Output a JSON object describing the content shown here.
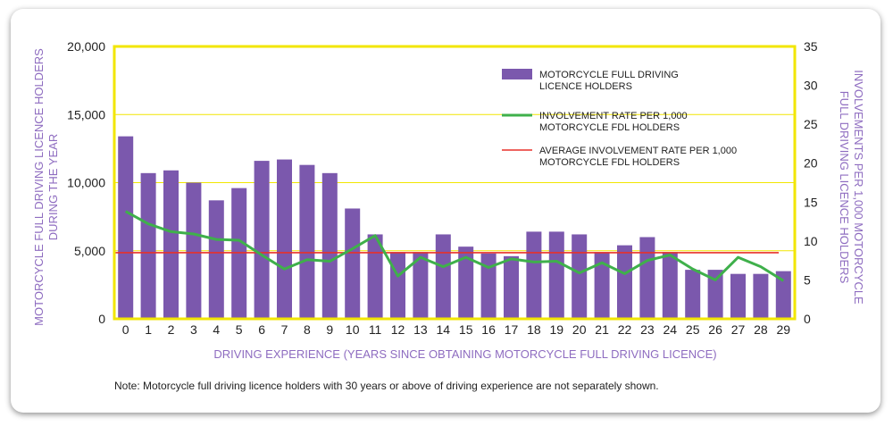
{
  "chart_data": {
    "type": "bar",
    "categories": [
      "0",
      "1",
      "2",
      "3",
      "4",
      "5",
      "6",
      "7",
      "8",
      "9",
      "10",
      "11",
      "12",
      "13",
      "14",
      "15",
      "16",
      "17",
      "18",
      "19",
      "20",
      "21",
      "22",
      "23",
      "24",
      "25",
      "26",
      "27",
      "28",
      "29"
    ],
    "series": [
      {
        "name": "MOTORCYCLE FULL DRIVING LICENCE HOLDERS",
        "type": "bar",
        "axis": "left",
        "values": [
          13400,
          10700,
          10900,
          10000,
          8700,
          9600,
          11600,
          11700,
          11300,
          10700,
          8100,
          6200,
          4900,
          4900,
          6200,
          5300,
          4800,
          4600,
          6400,
          6400,
          6200,
          4900,
          5400,
          6000,
          4900,
          3600,
          3600,
          3300,
          3300,
          3500
        ]
      },
      {
        "name": "INVOLVEMENT RATE PER 1,000 MOTORCYCLE FDL HOLDERS",
        "type": "line",
        "axis": "right",
        "values": [
          13.8,
          12.2,
          11.2,
          10.9,
          10.2,
          10.1,
          8.2,
          6.4,
          7.6,
          7.4,
          9.0,
          10.7,
          5.5,
          7.9,
          6.7,
          7.9,
          6.6,
          7.7,
          7.3,
          7.4,
          5.9,
          7.2,
          5.8,
          7.5,
          8.2,
          6.4,
          5.0,
          7.9,
          6.7,
          4.9
        ]
      },
      {
        "name": "AVERAGE INVOLVEMENT RATE PER 1,000 MOTORCYCLE FDL HOLDERS",
        "type": "line",
        "axis": "right",
        "values": [
          8.5,
          8.5,
          8.5,
          8.5,
          8.5,
          8.5,
          8.5,
          8.5,
          8.5,
          8.5,
          8.5,
          8.5,
          8.5,
          8.5,
          8.5,
          8.5,
          8.5,
          8.5,
          8.5,
          8.5,
          8.5,
          8.5,
          8.5,
          8.5,
          8.5,
          8.5,
          8.5,
          8.5,
          8.5,
          8.5
        ]
      }
    ],
    "ylim": [
      0,
      20000
    ],
    "y2lim": [
      0,
      35
    ],
    "left_ticks": [
      "0",
      "5,000",
      "10,000",
      "15,000",
      "20,000"
    ],
    "right_ticks": [
      "0",
      "5",
      "10",
      "15",
      "20",
      "25",
      "30",
      "35"
    ],
    "xlabel": "DRIVING EXPERIENCE (YEARS SINCE OBTAINING MOTORCYCLE FULL DRIVING LICENCE)",
    "ylabel_lines": [
      "MOTORCYCLE FULL DRIVING LICENCE HOLDERS",
      "DURING THE YEAR"
    ],
    "y2label_lines": [
      "INVOLVEMENTS PER 1,000 MOTORCYCLE",
      "FULL DRIVING LICENCE HOLDERS"
    ],
    "legend": [
      {
        "lines": [
          "MOTORCYCLE FULL DRIVING",
          "LICENCE HOLDERS"
        ]
      },
      {
        "lines": [
          "INVOLVEMENT RATE PER 1,000",
          "MOTORCYCLE FDL HOLDERS"
        ]
      },
      {
        "lines": [
          "AVERAGE INVOLVEMENT RATE PER 1,000",
          "MOTORCYCLE FDL HOLDERS"
        ]
      }
    ],
    "legend_position": "top-right",
    "grid": true,
    "colors": {
      "bars": "#7b58ad",
      "rate_line": "#3fb04b",
      "average_line": "#e8302a",
      "frame": "#f2e600",
      "gridlines": "#f2e600",
      "axis_titles": "#8e6cc0"
    }
  },
  "note": "Note: Motorcycle full driving licence holders with 30 years or above of driving experience are not separately shown."
}
